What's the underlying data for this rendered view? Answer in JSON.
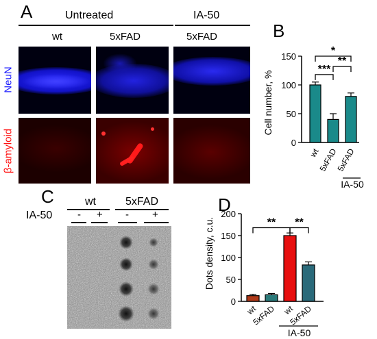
{
  "panel_labels": {
    "a": "A",
    "b": "B",
    "c": "C",
    "d": "D"
  },
  "panelA": {
    "group_untreated": "Untreated",
    "group_ia50": "IA-50",
    "col_wt": "wt",
    "col_5xfad_1": "5xFAD",
    "col_5xfad_2": "5xFAD",
    "row_neun": "NeuN",
    "row_amyloid": "β-amyloid",
    "colors": {
      "neun": "#1a1aff",
      "amyloid": "#ff1010"
    }
  },
  "panelC": {
    "group_wt": "wt",
    "group_5xfad": "5xFAD",
    "row_label": "IA-50",
    "signs": [
      "-",
      "+",
      "-",
      "+"
    ]
  },
  "chart_data": [
    {
      "type": "bar",
      "panel": "B",
      "categories": [
        "wt",
        "5xFAD",
        "5xFAD"
      ],
      "values": [
        100,
        40,
        80
      ],
      "errors": [
        5,
        10,
        6
      ],
      "ylabel": "Cell number, %",
      "ylim": [
        0,
        150
      ],
      "yticks": [
        0,
        50,
        100,
        150
      ],
      "group_label": "IA-50",
      "significance": [
        "***",
        "**",
        "*"
      ],
      "bar_color": "#1a8a8a"
    },
    {
      "type": "bar",
      "panel": "D",
      "categories": [
        "wt",
        "5xFAD",
        "wt",
        "5xFAD"
      ],
      "values": [
        13,
        15,
        150,
        83
      ],
      "errors": [
        3,
        3,
        6,
        7
      ],
      "ylabel": "Dots density, c.u.",
      "ylim": [
        0,
        200
      ],
      "yticks": [
        0,
        50,
        100,
        150,
        200
      ],
      "group_label": "IA-50",
      "significance": [
        "**",
        "**"
      ],
      "bar_colors": [
        "#b03a1a",
        "#2a7a7a",
        "#e81010",
        "#2a6a7a"
      ]
    }
  ]
}
